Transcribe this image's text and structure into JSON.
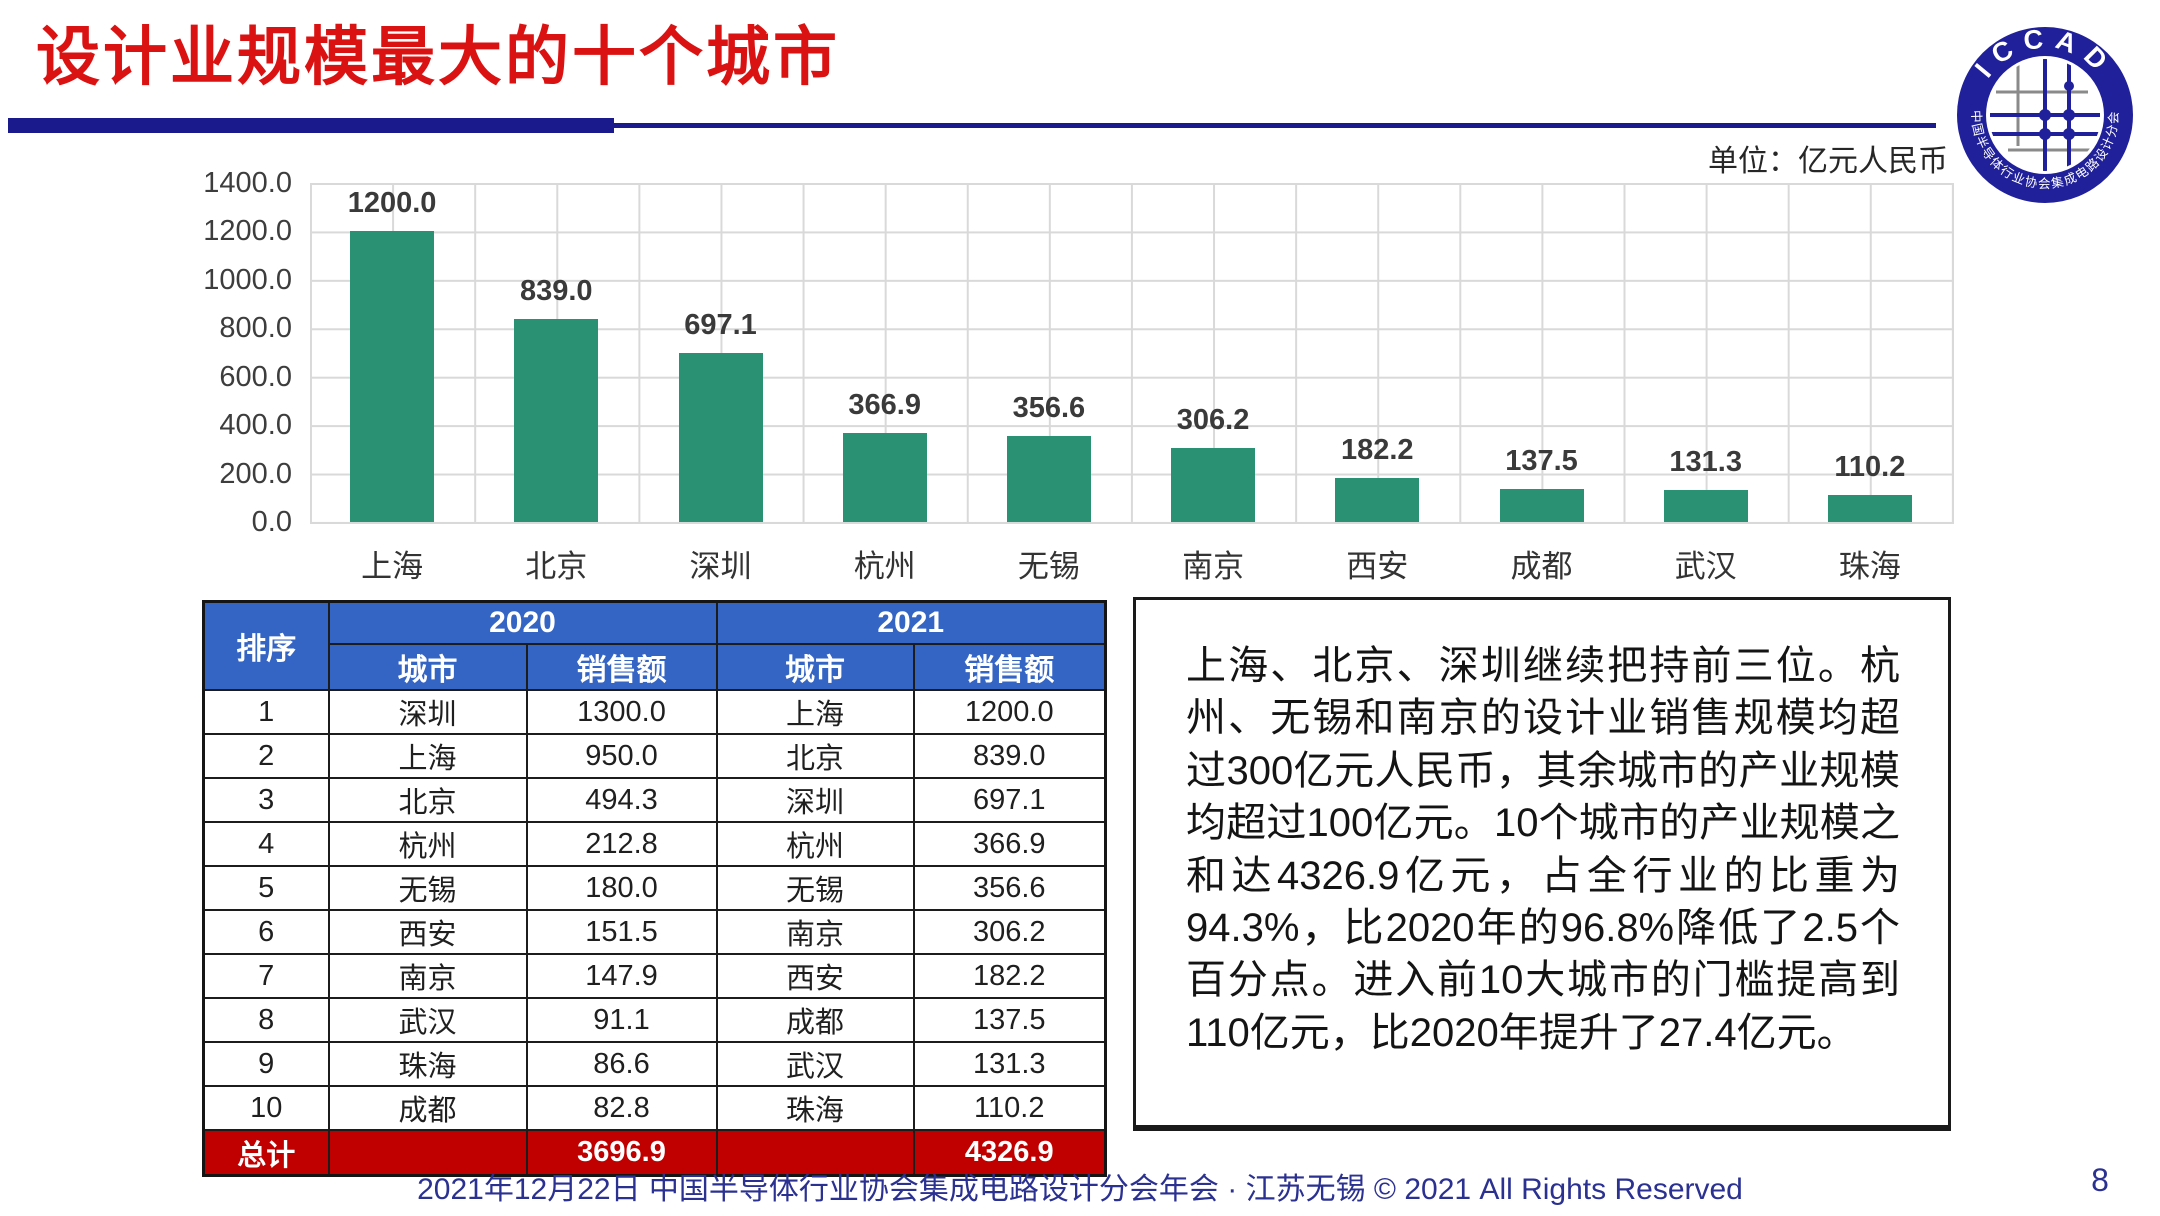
{
  "page": {
    "title": "设计业规模最大的十个城市",
    "footer": "2021年12月22日 中国半导体行业协会集成电路设计分会年会 · 江苏无锡 © 2021 All Rights Reserved",
    "page_number": "8"
  },
  "logo": {
    "top_text": "ICCAD",
    "bottom_text": "中国半导体行业协会集成电路设计分会"
  },
  "chart_data": {
    "type": "bar",
    "unit_label": "单位：亿元人民币",
    "categories": [
      "上海",
      "北京",
      "深圳",
      "杭州",
      "无锡",
      "南京",
      "西安",
      "成都",
      "武汉",
      "珠海"
    ],
    "values": [
      1200.0,
      839.0,
      697.1,
      366.9,
      356.6,
      306.2,
      182.2,
      137.5,
      131.3,
      110.2
    ],
    "value_labels": [
      "1200.0",
      "839.0",
      "697.1",
      "366.9",
      "356.6",
      "306.2",
      "182.2",
      "137.5",
      "131.3",
      "110.2"
    ],
    "ylim": [
      0,
      1400
    ],
    "ytick_step": 200,
    "grid": true,
    "legend_position": "none",
    "bar_color": "#2B9173",
    "title": "",
    "xlabel": "",
    "ylabel": ""
  },
  "table": {
    "rank_header": "排序",
    "year_groups": [
      {
        "year": "2020",
        "city_header": "城市",
        "sales_header": "销售额"
      },
      {
        "year": "2021",
        "city_header": "城市",
        "sales_header": "销售额"
      }
    ],
    "rows": [
      {
        "rank": "1",
        "city_2020": "深圳",
        "sales_2020": "1300.0",
        "city_2021": "上海",
        "sales_2021": "1200.0"
      },
      {
        "rank": "2",
        "city_2020": "上海",
        "sales_2020": "950.0",
        "city_2021": "北京",
        "sales_2021": "839.0"
      },
      {
        "rank": "3",
        "city_2020": "北京",
        "sales_2020": "494.3",
        "city_2021": "深圳",
        "sales_2021": "697.1"
      },
      {
        "rank": "4",
        "city_2020": "杭州",
        "sales_2020": "212.8",
        "city_2021": "杭州",
        "sales_2021": "366.9"
      },
      {
        "rank": "5",
        "city_2020": "无锡",
        "sales_2020": "180.0",
        "city_2021": "无锡",
        "sales_2021": "356.6"
      },
      {
        "rank": "6",
        "city_2020": "西安",
        "sales_2020": "151.5",
        "city_2021": "南京",
        "sales_2021": "306.2"
      },
      {
        "rank": "7",
        "city_2020": "南京",
        "sales_2020": "147.9",
        "city_2021": "西安",
        "sales_2021": "182.2"
      },
      {
        "rank": "8",
        "city_2020": "武汉",
        "sales_2020": "91.1",
        "city_2021": "成都",
        "sales_2021": "137.5"
      },
      {
        "rank": "9",
        "city_2020": "珠海",
        "sales_2020": "86.6",
        "city_2021": "武汉",
        "sales_2021": "131.3"
      },
      {
        "rank": "10",
        "city_2020": "成都",
        "sales_2020": "82.8",
        "city_2021": "珠海",
        "sales_2021": "110.2"
      }
    ],
    "total": {
      "label": "总计",
      "sales_2020": "3696.9",
      "sales_2021": "4326.9"
    }
  },
  "commentary": {
    "text": "上海、北京、深圳继续把持前三位。杭州、无锡和南京的设计业销售规模均超过300亿元人民币，其余城市的产业规模均超过100亿元。10个城市的产业规模之和达4326.9亿元，占全行业的比重为94.3%，比2020年的96.8%降低了2.5个百分点。进入前10大城市的门槛提高到110亿元，比2020年提升了27.4亿元。"
  },
  "colors": {
    "title_red": "#DB1212",
    "accent_navy": "#1A1A8C",
    "bar_teal": "#2B9173",
    "table_header_blue": "#3464C4",
    "total_row_red": "#C00000",
    "footer_navy": "#2B3191",
    "gridline_gray": "#D9D9D9"
  }
}
